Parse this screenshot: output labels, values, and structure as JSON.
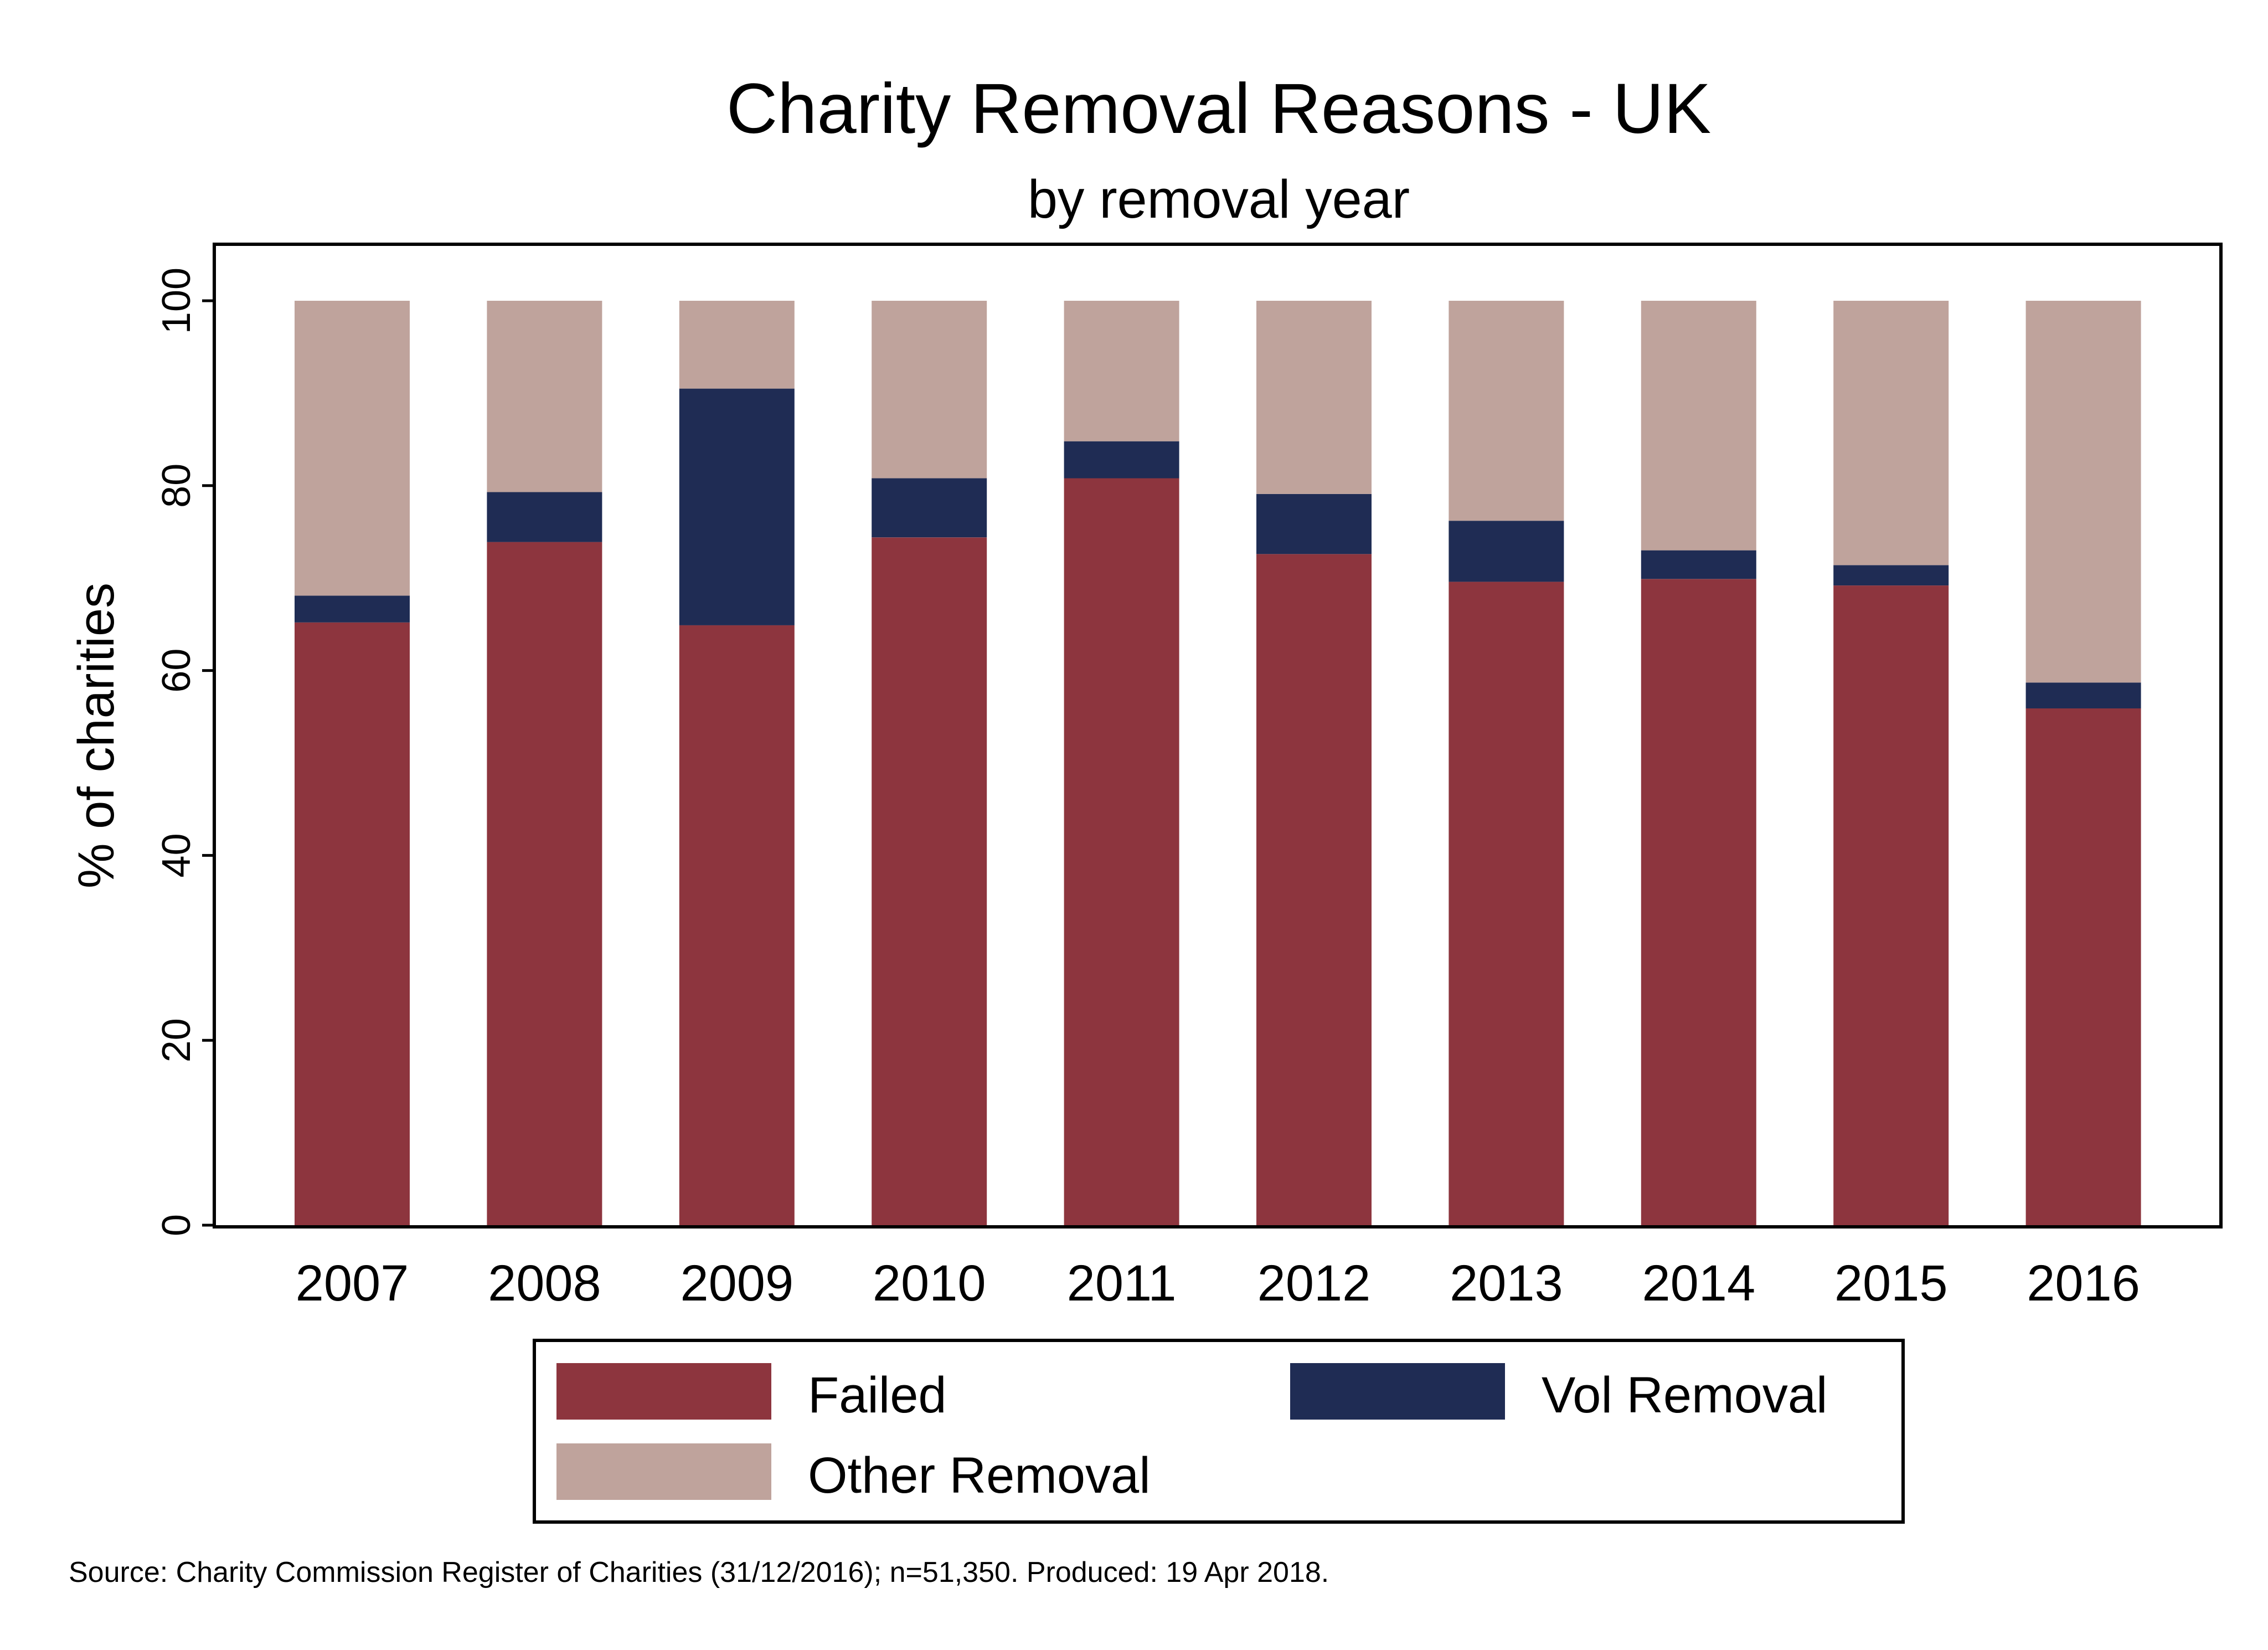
{
  "chart_data": {
    "type": "bar",
    "stacked": true,
    "title": "Charity Removal Reasons - UK",
    "subtitle": "by removal year",
    "ylabel": "% of charities",
    "xlabel": "",
    "ylim": [
      0,
      100
    ],
    "yticks": [
      0,
      20,
      40,
      60,
      80,
      100
    ],
    "grid": false,
    "legend_position": "bottom",
    "categories": [
      "2007",
      "2008",
      "2009",
      "2010",
      "2011",
      "2012",
      "2013",
      "2014",
      "2015",
      "2016"
    ],
    "series": [
      {
        "name": "Failed",
        "color": "#8d353e",
        "values": [
          65.2,
          73.9,
          64.9,
          74.4,
          80.8,
          72.6,
          69.6,
          69.9,
          69.2,
          55.9
        ]
      },
      {
        "name": "Vol Removal",
        "color": "#1f2c54",
        "values": [
          2.9,
          5.4,
          25.6,
          6.4,
          4.0,
          6.5,
          6.6,
          3.1,
          2.2,
          2.8
        ]
      },
      {
        "name": "Other Removal",
        "color": "#bfa39c",
        "values": [
          31.9,
          20.7,
          9.5,
          19.2,
          15.2,
          20.9,
          23.8,
          27.0,
          28.6,
          41.3
        ]
      }
    ],
    "note": "Source: Charity Commission Register of Charities (31/12/2016);  n=51,350. Produced: 19 Apr 2018."
  }
}
